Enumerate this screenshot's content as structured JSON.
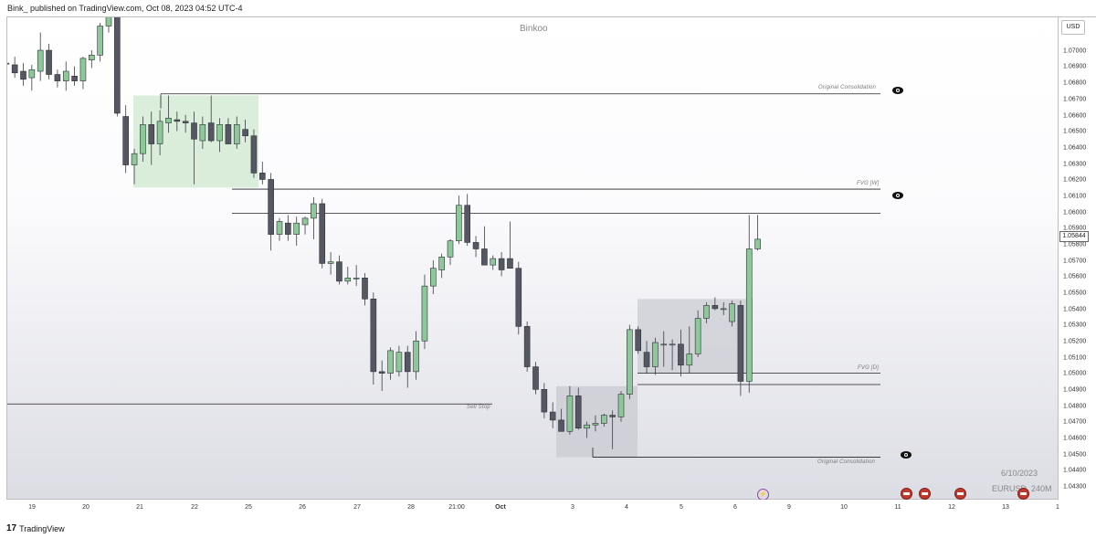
{
  "header": {
    "published_text": "Bink_ published on TradingView.com, Oct 08, 2023 04:52 UTC-4"
  },
  "chart": {
    "watermark": "Binkoo",
    "currency": "USD",
    "date_text": "6/10/2023",
    "symbol_text": "EURUSD, 240M",
    "current_price": "1.05844",
    "annotations": {
      "original_consolidation_top": "Original Consolidation",
      "fvg_w": "FVG [W]",
      "fvg_d": "FVG [D]",
      "sell_stop": "Sell Stop",
      "original_consolidation_bottom": "Original Consolidation"
    },
    "colors": {
      "bull": "#8cc898",
      "bear": "#555762",
      "green_zone": "#cfe8cf",
      "grey_zone": "#c9cad2",
      "line": "#222222"
    }
  },
  "price_axis": [
    "1.07000",
    "1.06900",
    "1.06800",
    "1.06700",
    "1.06600",
    "1.06500",
    "1.06400",
    "1.06300",
    "1.06200",
    "1.06100",
    "1.06000",
    "1.05900",
    "1.05800",
    "1.05700",
    "1.05600",
    "1.05500",
    "1.05400",
    "1.05300",
    "1.05200",
    "1.05100",
    "1.05000",
    "1.04900",
    "1.04800",
    "1.04700",
    "1.04600",
    "1.04500",
    "1.04400",
    "1.04300"
  ],
  "time_axis": [
    {
      "label": "19",
      "bold": false
    },
    {
      "label": "20",
      "bold": false
    },
    {
      "label": "21",
      "bold": false
    },
    {
      "label": "22",
      "bold": false
    },
    {
      "label": "25",
      "bold": false
    },
    {
      "label": "26",
      "bold": false
    },
    {
      "label": "27",
      "bold": false
    },
    {
      "label": "28",
      "bold": false
    },
    {
      "label": "21:00",
      "bold": false
    },
    {
      "label": "Oct",
      "bold": true
    },
    {
      "label": "3",
      "bold": false
    },
    {
      "label": "4",
      "bold": false
    },
    {
      "label": "5",
      "bold": false
    },
    {
      "label": "6",
      "bold": false
    },
    {
      "label": "9",
      "bold": false
    },
    {
      "label": "10",
      "bold": false
    },
    {
      "label": "11",
      "bold": false
    },
    {
      "label": "12",
      "bold": false
    },
    {
      "label": "13",
      "bold": false
    },
    {
      "label": "1",
      "bold": false
    }
  ],
  "footer": {
    "brand": "TradingView",
    "logo_mark": "17"
  },
  "chart_data": {
    "type": "candlestick",
    "title": "Binkoo",
    "symbol": "EURUSD, 240M",
    "ylim": [
      1.0425,
      1.0725
    ],
    "candles": [
      {
        "o": 1.0693,
        "h": 1.0694,
        "l": 1.0692,
        "c": 1.0693
      },
      {
        "o": 1.0692,
        "h": 1.0697,
        "l": 1.0684,
        "c": 1.0687
      },
      {
        "o": 1.0688,
        "h": 1.0693,
        "l": 1.0679,
        "c": 1.0683
      },
      {
        "o": 1.0684,
        "h": 1.0692,
        "l": 1.0676,
        "c": 1.0689
      },
      {
        "o": 1.0688,
        "h": 1.0712,
        "l": 1.0682,
        "c": 1.0701
      },
      {
        "o": 1.0701,
        "h": 1.0705,
        "l": 1.0683,
        "c": 1.0686
      },
      {
        "o": 1.0686,
        "h": 1.0689,
        "l": 1.0678,
        "c": 1.0682
      },
      {
        "o": 1.0682,
        "h": 1.0694,
        "l": 1.0676,
        "c": 1.0688
      },
      {
        "o": 1.0685,
        "h": 1.0691,
        "l": 1.0679,
        "c": 1.0682
      },
      {
        "o": 1.0682,
        "h": 1.0697,
        "l": 1.0677,
        "c": 1.0696
      },
      {
        "o": 1.0695,
        "h": 1.0701,
        "l": 1.069,
        "c": 1.0698
      },
      {
        "o": 1.0698,
        "h": 1.0718,
        "l": 1.0694,
        "c": 1.0716
      },
      {
        "o": 1.0716,
        "h": 1.073,
        "l": 1.0712,
        "c": 1.073
      },
      {
        "o": 1.0728,
        "h": 1.073,
        "l": 1.066,
        "c": 1.0662
      },
      {
        "o": 1.066,
        "h": 1.0667,
        "l": 1.0625,
        "c": 1.063
      },
      {
        "o": 1.063,
        "h": 1.064,
        "l": 1.0618,
        "c": 1.0637
      },
      {
        "o": 1.0637,
        "h": 1.066,
        "l": 1.0632,
        "c": 1.0655
      },
      {
        "o": 1.0655,
        "h": 1.0663,
        "l": 1.063,
        "c": 1.0643
      },
      {
        "o": 1.0643,
        "h": 1.0664,
        "l": 1.0636,
        "c": 1.0657
      },
      {
        "o": 1.0656,
        "h": 1.0673,
        "l": 1.065,
        "c": 1.0659
      },
      {
        "o": 1.0658,
        "h": 1.0663,
        "l": 1.0651,
        "c": 1.0657
      },
      {
        "o": 1.0657,
        "h": 1.0661,
        "l": 1.065,
        "c": 1.0656
      },
      {
        "o": 1.0656,
        "h": 1.0663,
        "l": 1.0618,
        "c": 1.0646
      },
      {
        "o": 1.0645,
        "h": 1.066,
        "l": 1.064,
        "c": 1.0655
      },
      {
        "o": 1.0656,
        "h": 1.0673,
        "l": 1.0644,
        "c": 1.0645
      },
      {
        "o": 1.0645,
        "h": 1.0659,
        "l": 1.0638,
        "c": 1.0655
      },
      {
        "o": 1.0655,
        "h": 1.0659,
        "l": 1.0645,
        "c": 1.0643
      },
      {
        "o": 1.0643,
        "h": 1.066,
        "l": 1.064,
        "c": 1.0655
      },
      {
        "o": 1.0652,
        "h": 1.0658,
        "l": 1.0644,
        "c": 1.0648
      },
      {
        "o": 1.0648,
        "h": 1.0652,
        "l": 1.0622,
        "c": 1.0625
      },
      {
        "o": 1.0625,
        "h": 1.0632,
        "l": 1.0618,
        "c": 1.0621
      },
      {
        "o": 1.0621,
        "h": 1.0625,
        "l": 1.0577,
        "c": 1.0587
      },
      {
        "o": 1.0587,
        "h": 1.0597,
        "l": 1.0583,
        "c": 1.0595
      },
      {
        "o": 1.0594,
        "h": 1.0599,
        "l": 1.0583,
        "c": 1.0587
      },
      {
        "o": 1.0587,
        "h": 1.0598,
        "l": 1.058,
        "c": 1.0594
      },
      {
        "o": 1.0593,
        "h": 1.0598,
        "l": 1.0587,
        "c": 1.0597
      },
      {
        "o": 1.0597,
        "h": 1.061,
        "l": 1.0584,
        "c": 1.0606
      },
      {
        "o": 1.0606,
        "h": 1.0609,
        "l": 1.0566,
        "c": 1.0569
      },
      {
        "o": 1.0569,
        "h": 1.0576,
        "l": 1.0562,
        "c": 1.057
      },
      {
        "o": 1.057,
        "h": 1.0574,
        "l": 1.0556,
        "c": 1.0558
      },
      {
        "o": 1.0558,
        "h": 1.0567,
        "l": 1.0556,
        "c": 1.056
      },
      {
        "o": 1.056,
        "h": 1.0568,
        "l": 1.0555,
        "c": 1.056
      },
      {
        "o": 1.056,
        "h": 1.0563,
        "l": 1.0543,
        "c": 1.0547
      },
      {
        "o": 1.0547,
        "h": 1.0551,
        "l": 1.0494,
        "c": 1.0502
      },
      {
        "o": 1.0502,
        "h": 1.0509,
        "l": 1.049,
        "c": 1.0501
      },
      {
        "o": 1.0501,
        "h": 1.0517,
        "l": 1.0497,
        "c": 1.0515
      },
      {
        "o": 1.0502,
        "h": 1.0518,
        "l": 1.0499,
        "c": 1.0514
      },
      {
        "o": 1.0514,
        "h": 1.0518,
        "l": 1.0492,
        "c": 1.0502
      },
      {
        "o": 1.0502,
        "h": 1.0527,
        "l": 1.0497,
        "c": 1.0521
      },
      {
        "o": 1.0521,
        "h": 1.0562,
        "l": 1.0516,
        "c": 1.0555
      },
      {
        "o": 1.0555,
        "h": 1.0571,
        "l": 1.055,
        "c": 1.0566
      },
      {
        "o": 1.0565,
        "h": 1.0575,
        "l": 1.056,
        "c": 1.0573
      },
      {
        "o": 1.0573,
        "h": 1.0584,
        "l": 1.0568,
        "c": 1.0583
      },
      {
        "o": 1.0583,
        "h": 1.0611,
        "l": 1.0581,
        "c": 1.0605
      },
      {
        "o": 1.0605,
        "h": 1.0612,
        "l": 1.058,
        "c": 1.0582
      },
      {
        "o": 1.0582,
        "h": 1.0586,
        "l": 1.0573,
        "c": 1.0578
      },
      {
        "o": 1.0578,
        "h": 1.0592,
        "l": 1.0568,
        "c": 1.0568
      },
      {
        "o": 1.0568,
        "h": 1.0574,
        "l": 1.0565,
        "c": 1.0572
      },
      {
        "o": 1.0572,
        "h": 1.0576,
        "l": 1.0561,
        "c": 1.0565
      },
      {
        "o": 1.0572,
        "h": 1.0595,
        "l": 1.0566,
        "c": 1.0566
      },
      {
        "o": 1.0566,
        "h": 1.057,
        "l": 1.0525,
        "c": 1.053
      },
      {
        "o": 1.053,
        "h": 1.0533,
        "l": 1.0502,
        "c": 1.0505
      },
      {
        "o": 1.0505,
        "h": 1.0508,
        "l": 1.0488,
        "c": 1.0491
      },
      {
        "o": 1.0491,
        "h": 1.0495,
        "l": 1.0473,
        "c": 1.0477
      },
      {
        "o": 1.0477,
        "h": 1.0483,
        "l": 1.0467,
        "c": 1.0472
      },
      {
        "o": 1.0472,
        "h": 1.0479,
        "l": 1.0465,
        "c": 1.0465
      },
      {
        "o": 1.0465,
        "h": 1.0493,
        "l": 1.0463,
        "c": 1.0487
      },
      {
        "o": 1.0487,
        "h": 1.0492,
        "l": 1.0466,
        "c": 1.0467
      },
      {
        "o": 1.0467,
        "h": 1.0471,
        "l": 1.0461,
        "c": 1.0469
      },
      {
        "o": 1.0469,
        "h": 1.0475,
        "l": 1.0465,
        "c": 1.047
      },
      {
        "o": 1.047,
        "h": 1.0476,
        "l": 1.0468,
        "c": 1.0475
      },
      {
        "o": 1.0475,
        "h": 1.0478,
        "l": 1.0454,
        "c": 1.0474
      },
      {
        "o": 1.0474,
        "h": 1.049,
        "l": 1.0471,
        "c": 1.0488
      },
      {
        "o": 1.0488,
        "h": 1.0531,
        "l": 1.0485,
        "c": 1.0528
      },
      {
        "o": 1.0528,
        "h": 1.053,
        "l": 1.0513,
        "c": 1.0515
      },
      {
        "o": 1.0514,
        "h": 1.0521,
        "l": 1.0501,
        "c": 1.0505
      },
      {
        "o": 1.0505,
        "h": 1.0523,
        "l": 1.05,
        "c": 1.052
      },
      {
        "o": 1.0519,
        "h": 1.0527,
        "l": 1.0505,
        "c": 1.0519
      },
      {
        "o": 1.0519,
        "h": 1.0522,
        "l": 1.0503,
        "c": 1.0519
      },
      {
        "o": 1.0519,
        "h": 1.0528,
        "l": 1.0499,
        "c": 1.0506
      },
      {
        "o": 1.0506,
        "h": 1.053,
        "l": 1.0501,
        "c": 1.0513
      },
      {
        "o": 1.0513,
        "h": 1.054,
        "l": 1.0511,
        "c": 1.0535
      },
      {
        "o": 1.0535,
        "h": 1.0545,
        "l": 1.0532,
        "c": 1.0543
      },
      {
        "o": 1.0543,
        "h": 1.0548,
        "l": 1.054,
        "c": 1.0541
      },
      {
        "o": 1.0541,
        "h": 1.0545,
        "l": 1.0537,
        "c": 1.0541
      },
      {
        "o": 1.0533,
        "h": 1.0546,
        "l": 1.053,
        "c": 1.0544
      },
      {
        "o": 1.0543,
        "h": 1.0546,
        "l": 1.0487,
        "c": 1.0496
      },
      {
        "o": 1.0496,
        "h": 1.0599,
        "l": 1.0489,
        "c": 1.0578
      },
      {
        "o": 1.0578,
        "h": 1.0599,
        "l": 1.0577,
        "c": 1.0584
      }
    ]
  }
}
